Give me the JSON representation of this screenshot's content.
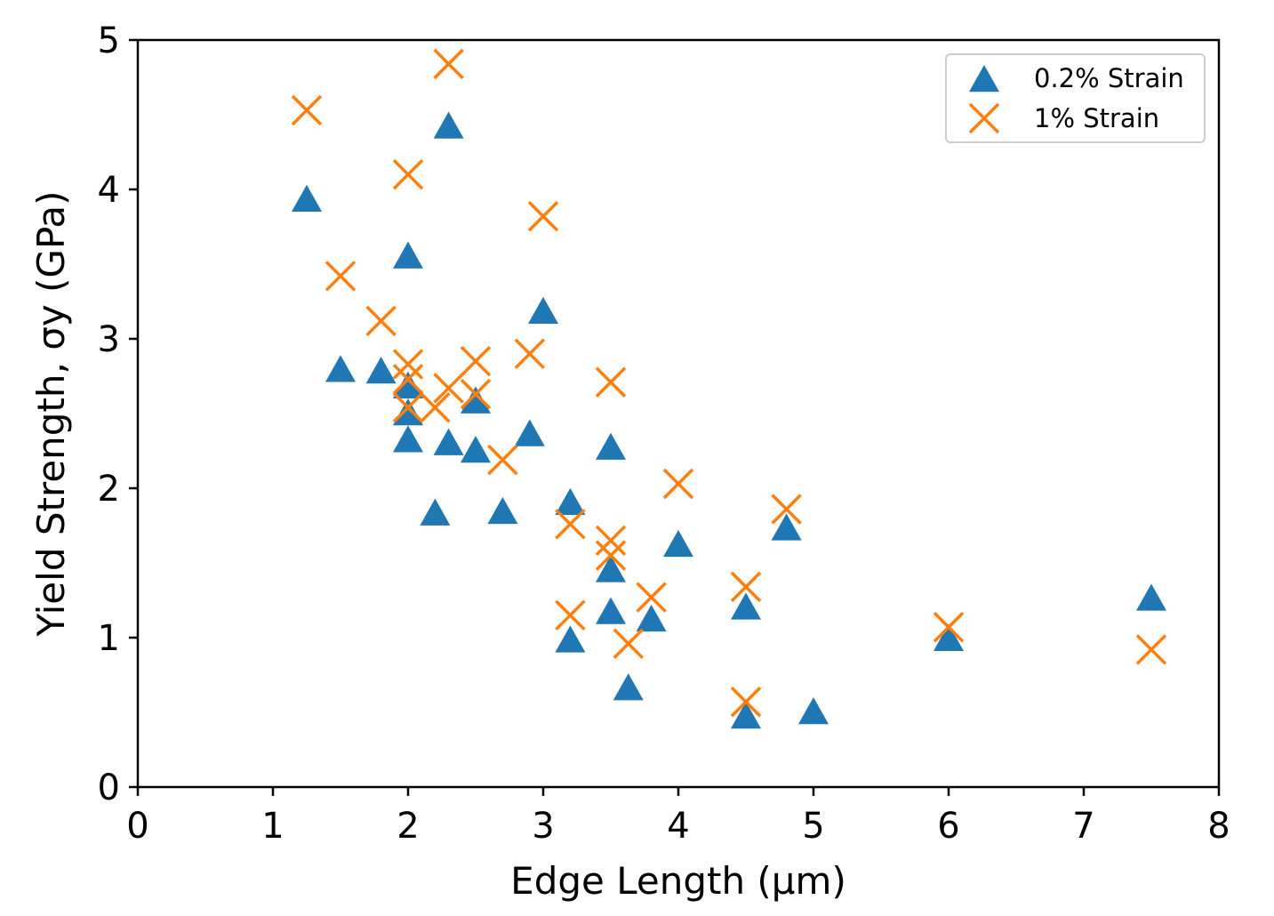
{
  "chart_data": {
    "type": "scatter",
    "title": "",
    "xlabel": "Edge Length (μm)",
    "ylabel": "Yield Strength, σy (GPa)",
    "xlim": [
      0,
      8
    ],
    "ylim": [
      0,
      5
    ],
    "xticks": [
      "0",
      "1",
      "2",
      "3",
      "4",
      "5",
      "6",
      "7",
      "8"
    ],
    "yticks": [
      "0",
      "1",
      "2",
      "3",
      "4",
      "5"
    ],
    "grid": false,
    "legend_position": "top-right",
    "series": [
      {
        "name": "0.2% Strain",
        "marker": "triangle",
        "color": "#1f77b4",
        "points": [
          [
            1.25,
            3.93
          ],
          [
            1.5,
            2.79
          ],
          [
            1.8,
            2.78
          ],
          [
            2.0,
            3.55
          ],
          [
            2.0,
            2.68
          ],
          [
            2.0,
            2.5
          ],
          [
            2.0,
            2.32
          ],
          [
            2.2,
            1.83
          ],
          [
            2.3,
            4.42
          ],
          [
            2.3,
            2.3
          ],
          [
            2.5,
            2.58
          ],
          [
            2.5,
            2.25
          ],
          [
            2.7,
            1.84
          ],
          [
            2.9,
            2.36
          ],
          [
            3.0,
            3.18
          ],
          [
            3.2,
            1.9
          ],
          [
            3.2,
            0.98
          ],
          [
            3.5,
            2.27
          ],
          [
            3.5,
            1.45
          ],
          [
            3.5,
            1.17
          ],
          [
            3.63,
            0.66
          ],
          [
            3.8,
            1.12
          ],
          [
            4.0,
            1.62
          ],
          [
            4.5,
            1.2
          ],
          [
            4.5,
            0.47
          ],
          [
            4.8,
            1.73
          ],
          [
            5.0,
            0.5
          ],
          [
            6.0,
            0.99
          ],
          [
            7.5,
            1.26
          ]
        ]
      },
      {
        "name": "1% Strain",
        "marker": "x",
        "color": "#ff7f0e",
        "points": [
          [
            1.25,
            4.53
          ],
          [
            1.5,
            3.42
          ],
          [
            1.8,
            3.12
          ],
          [
            2.0,
            4.1
          ],
          [
            2.0,
            2.83
          ],
          [
            2.0,
            2.73
          ],
          [
            2.0,
            2.54
          ],
          [
            2.2,
            2.54
          ],
          [
            2.3,
            4.84
          ],
          [
            2.3,
            2.67
          ],
          [
            2.5,
            2.85
          ],
          [
            2.5,
            2.63
          ],
          [
            2.7,
            2.19
          ],
          [
            2.9,
            2.9
          ],
          [
            3.0,
            3.82
          ],
          [
            3.2,
            1.76
          ],
          [
            3.2,
            1.15
          ],
          [
            3.5,
            2.71
          ],
          [
            3.5,
            1.65
          ],
          [
            3.5,
            1.55
          ],
          [
            3.63,
            0.96
          ],
          [
            3.8,
            1.27
          ],
          [
            4.0,
            2.03
          ],
          [
            4.5,
            1.34
          ],
          [
            4.5,
            0.57
          ],
          [
            4.8,
            1.86
          ],
          [
            6.0,
            1.07
          ],
          [
            7.5,
            0.92
          ]
        ]
      }
    ]
  }
}
